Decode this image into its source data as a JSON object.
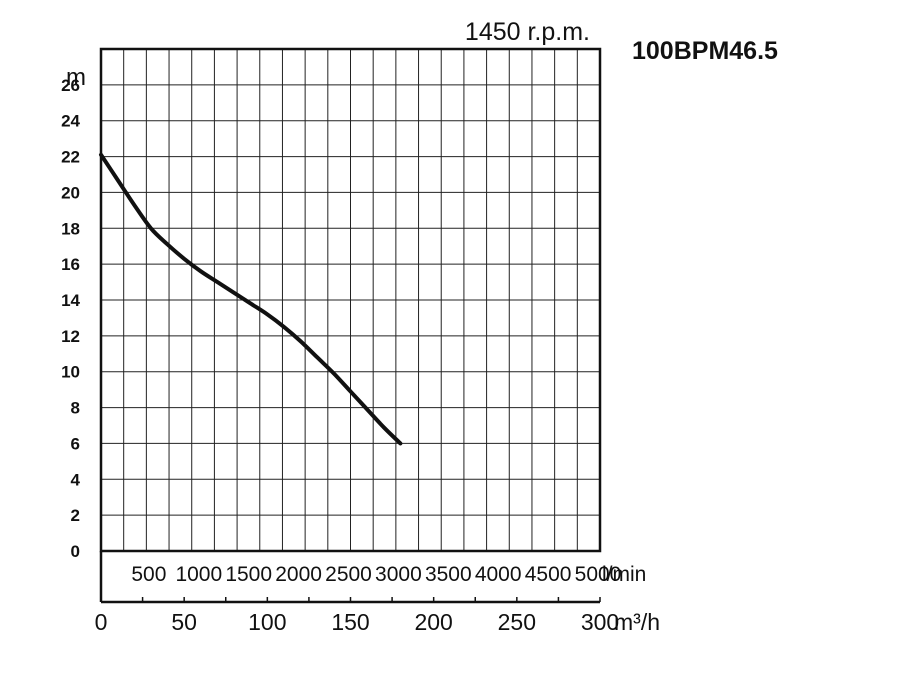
{
  "chart_data": {
    "type": "line",
    "speed_label": "1450 r.p.m.",
    "model_label": "100BPM46.5",
    "y_unit": "m",
    "x_unit_lmin": "l/min",
    "x_unit_m3h": "m³/h",
    "ylim": [
      0,
      28
    ],
    "xlim_m3h": [
      0,
      300
    ],
    "grid": true,
    "y_ticks": [
      "0",
      "2",
      "4",
      "6",
      "8",
      "10",
      "12",
      "14",
      "16",
      "18",
      "20",
      "22",
      "24",
      "26"
    ],
    "x_ticks_lmin": [
      "500",
      "1000",
      "1500",
      "2000",
      "2500",
      "3000",
      "3500",
      "4000",
      "4500",
      "5000"
    ],
    "x_ticks_m3h": [
      "0",
      "50",
      "100",
      "150",
      "200",
      "250",
      "300"
    ],
    "series": [
      {
        "x": [
          0,
          10,
          20,
          30,
          40,
          50,
          60,
          70,
          80,
          90,
          100,
          110,
          120,
          130,
          140,
          150,
          160,
          170,
          180
        ],
        "y": [
          22.1,
          20.7,
          19.3,
          18.0,
          17.1,
          16.3,
          15.6,
          15.0,
          14.4,
          13.8,
          13.2,
          12.5,
          11.7,
          10.8,
          9.9,
          8.9,
          7.9,
          6.9,
          6.0
        ]
      }
    ]
  }
}
